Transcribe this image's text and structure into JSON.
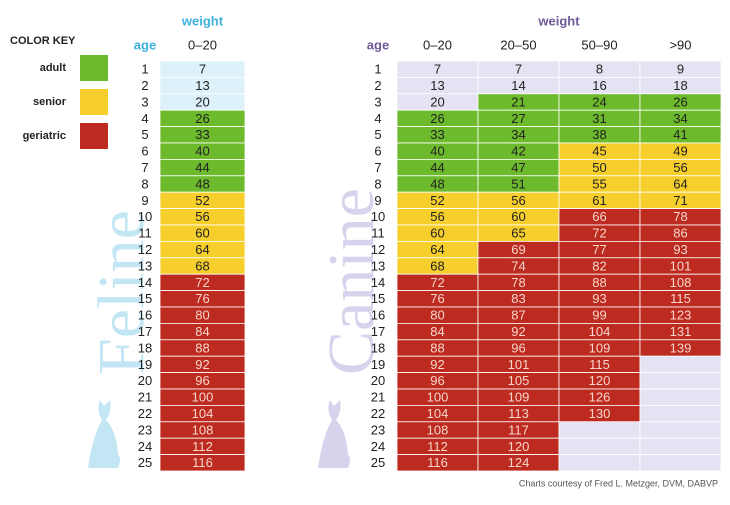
{
  "color_key": {
    "title": "COLOR KEY",
    "items": [
      {
        "label": "adult",
        "color": "#6dbb2c"
      },
      {
        "label": "senior",
        "color": "#f7cf2c"
      },
      {
        "label": "geriatric",
        "color": "#bd2a1f"
      }
    ]
  },
  "feline": {
    "title": "Feline",
    "weight_label": "weight",
    "age_label": "age",
    "columns": [
      "0–20"
    ],
    "young_color": "#dcf1f9",
    "accent": "#3fb0dd",
    "watermark": "#c3e6f4",
    "rows": [
      {
        "age": 1,
        "values": [
          7
        ],
        "stages": [
          null
        ]
      },
      {
        "age": 2,
        "values": [
          13
        ],
        "stages": [
          null
        ]
      },
      {
        "age": 3,
        "values": [
          20
        ],
        "stages": [
          null
        ]
      },
      {
        "age": 4,
        "values": [
          26
        ],
        "stages": [
          0
        ]
      },
      {
        "age": 5,
        "values": [
          33
        ],
        "stages": [
          0
        ]
      },
      {
        "age": 6,
        "values": [
          40
        ],
        "stages": [
          0
        ]
      },
      {
        "age": 7,
        "values": [
          44
        ],
        "stages": [
          0
        ]
      },
      {
        "age": 8,
        "values": [
          48
        ],
        "stages": [
          0
        ]
      },
      {
        "age": 9,
        "values": [
          52
        ],
        "stages": [
          1
        ]
      },
      {
        "age": 10,
        "values": [
          56
        ],
        "stages": [
          1
        ]
      },
      {
        "age": 11,
        "values": [
          60
        ],
        "stages": [
          1
        ]
      },
      {
        "age": 12,
        "values": [
          64
        ],
        "stages": [
          1
        ]
      },
      {
        "age": 13,
        "values": [
          68
        ],
        "stages": [
          1
        ]
      },
      {
        "age": 14,
        "values": [
          72
        ],
        "stages": [
          2
        ]
      },
      {
        "age": 15,
        "values": [
          76
        ],
        "stages": [
          2
        ]
      },
      {
        "age": 16,
        "values": [
          80
        ],
        "stages": [
          2
        ]
      },
      {
        "age": 17,
        "values": [
          84
        ],
        "stages": [
          2
        ]
      },
      {
        "age": 18,
        "values": [
          88
        ],
        "stages": [
          2
        ]
      },
      {
        "age": 19,
        "values": [
          92
        ],
        "stages": [
          2
        ]
      },
      {
        "age": 20,
        "values": [
          96
        ],
        "stages": [
          2
        ]
      },
      {
        "age": 21,
        "values": [
          100
        ],
        "stages": [
          2
        ]
      },
      {
        "age": 22,
        "values": [
          104
        ],
        "stages": [
          2
        ]
      },
      {
        "age": 23,
        "values": [
          108
        ],
        "stages": [
          2
        ]
      },
      {
        "age": 24,
        "values": [
          112
        ],
        "stages": [
          2
        ]
      },
      {
        "age": 25,
        "values": [
          116
        ],
        "stages": [
          2
        ]
      }
    ]
  },
  "canine": {
    "title": "Canine",
    "weight_label": "weight",
    "age_label": "age",
    "columns": [
      "0–20",
      "20–50",
      "50–90",
      ">90"
    ],
    "young_color": "#e5e3f3",
    "accent": "#6e5a96",
    "watermark": "#d8d3ec",
    "rows": [
      {
        "age": 1,
        "values": [
          7,
          7,
          8,
          9
        ],
        "stages": [
          null,
          null,
          null,
          null
        ]
      },
      {
        "age": 2,
        "values": [
          13,
          14,
          16,
          18
        ],
        "stages": [
          null,
          null,
          null,
          null
        ]
      },
      {
        "age": 3,
        "values": [
          20,
          21,
          24,
          26
        ],
        "stages": [
          null,
          0,
          0,
          0
        ]
      },
      {
        "age": 4,
        "values": [
          26,
          27,
          31,
          34
        ],
        "stages": [
          0,
          0,
          0,
          0
        ]
      },
      {
        "age": 5,
        "values": [
          33,
          34,
          38,
          41
        ],
        "stages": [
          0,
          0,
          0,
          0
        ]
      },
      {
        "age": 6,
        "values": [
          40,
          42,
          45,
          49
        ],
        "stages": [
          0,
          0,
          1,
          1
        ]
      },
      {
        "age": 7,
        "values": [
          44,
          47,
          50,
          56
        ],
        "stages": [
          0,
          0,
          1,
          1
        ]
      },
      {
        "age": 8,
        "values": [
          48,
          51,
          55,
          64
        ],
        "stages": [
          0,
          0,
          1,
          1
        ]
      },
      {
        "age": 9,
        "values": [
          52,
          56,
          61,
          71
        ],
        "stages": [
          1,
          1,
          1,
          1
        ]
      },
      {
        "age": 10,
        "values": [
          56,
          60,
          66,
          78
        ],
        "stages": [
          1,
          1,
          2,
          2
        ]
      },
      {
        "age": 11,
        "values": [
          60,
          65,
          72,
          86
        ],
        "stages": [
          1,
          1,
          2,
          2
        ]
      },
      {
        "age": 12,
        "values": [
          64,
          69,
          77,
          93
        ],
        "stages": [
          1,
          2,
          2,
          2
        ]
      },
      {
        "age": 13,
        "values": [
          68,
          74,
          82,
          101
        ],
        "stages": [
          1,
          2,
          2,
          2
        ]
      },
      {
        "age": 14,
        "values": [
          72,
          78,
          88,
          108
        ],
        "stages": [
          2,
          2,
          2,
          2
        ]
      },
      {
        "age": 15,
        "values": [
          76,
          83,
          93,
          115
        ],
        "stages": [
          2,
          2,
          2,
          2
        ]
      },
      {
        "age": 16,
        "values": [
          80,
          87,
          99,
          123
        ],
        "stages": [
          2,
          2,
          2,
          2
        ]
      },
      {
        "age": 17,
        "values": [
          84,
          92,
          104,
          131
        ],
        "stages": [
          2,
          2,
          2,
          2
        ]
      },
      {
        "age": 18,
        "values": [
          88,
          96,
          109,
          139
        ],
        "stages": [
          2,
          2,
          2,
          2
        ]
      },
      {
        "age": 19,
        "values": [
          92,
          101,
          115,
          null
        ],
        "stages": [
          2,
          2,
          2,
          null
        ]
      },
      {
        "age": 20,
        "values": [
          96,
          105,
          120,
          null
        ],
        "stages": [
          2,
          2,
          2,
          null
        ]
      },
      {
        "age": 21,
        "values": [
          100,
          109,
          126,
          null
        ],
        "stages": [
          2,
          2,
          2,
          null
        ]
      },
      {
        "age": 22,
        "values": [
          104,
          113,
          130,
          null
        ],
        "stages": [
          2,
          2,
          2,
          null
        ]
      },
      {
        "age": 23,
        "values": [
          108,
          117,
          null,
          null
        ],
        "stages": [
          2,
          2,
          null,
          null
        ]
      },
      {
        "age": 24,
        "values": [
          112,
          120,
          null,
          null
        ],
        "stages": [
          2,
          2,
          null,
          null
        ]
      },
      {
        "age": 25,
        "values": [
          116,
          124,
          null,
          null
        ],
        "stages": [
          2,
          2,
          null,
          null
        ]
      }
    ]
  },
  "credit": "Charts courtesy of Fred L. Metzger, DVM, DABVP"
}
